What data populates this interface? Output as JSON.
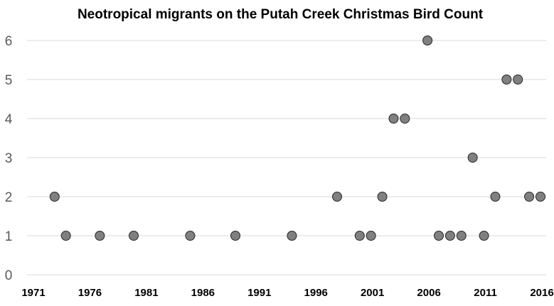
{
  "chart_data": {
    "type": "scatter",
    "title": "Neotropical migrants on the Putah Creek Christmas Bird Count",
    "xlabel": "",
    "ylabel": "",
    "xlim": [
      1971,
      2016
    ],
    "ylim": [
      0,
      6
    ],
    "x_ticks": [
      1971,
      1976,
      1981,
      1986,
      1991,
      1996,
      2001,
      2006,
      2011,
      2016
    ],
    "y_ticks": [
      0,
      1,
      2,
      3,
      4,
      5,
      6
    ],
    "grid": "horizontal",
    "legend": "none",
    "marker_color": "#808080",
    "marker_edge": "#262626",
    "points": [
      {
        "x": 1973,
        "y": 2
      },
      {
        "x": 1974,
        "y": 1
      },
      {
        "x": 1977,
        "y": 1
      },
      {
        "x": 1980,
        "y": 1
      },
      {
        "x": 1985,
        "y": 1
      },
      {
        "x": 1989,
        "y": 1
      },
      {
        "x": 1994,
        "y": 1
      },
      {
        "x": 1998,
        "y": 2
      },
      {
        "x": 2000,
        "y": 1
      },
      {
        "x": 2001,
        "y": 1
      },
      {
        "x": 2002,
        "y": 2
      },
      {
        "x": 2003,
        "y": 4
      },
      {
        "x": 2004,
        "y": 4
      },
      {
        "x": 2006,
        "y": 6
      },
      {
        "x": 2007,
        "y": 1
      },
      {
        "x": 2008,
        "y": 1
      },
      {
        "x": 2009,
        "y": 1
      },
      {
        "x": 2010,
        "y": 3
      },
      {
        "x": 2011,
        "y": 1
      },
      {
        "x": 2012,
        "y": 2
      },
      {
        "x": 2013,
        "y": 5
      },
      {
        "x": 2014,
        "y": 5
      },
      {
        "x": 2015,
        "y": 2
      },
      {
        "x": 2016,
        "y": 2
      }
    ]
  }
}
